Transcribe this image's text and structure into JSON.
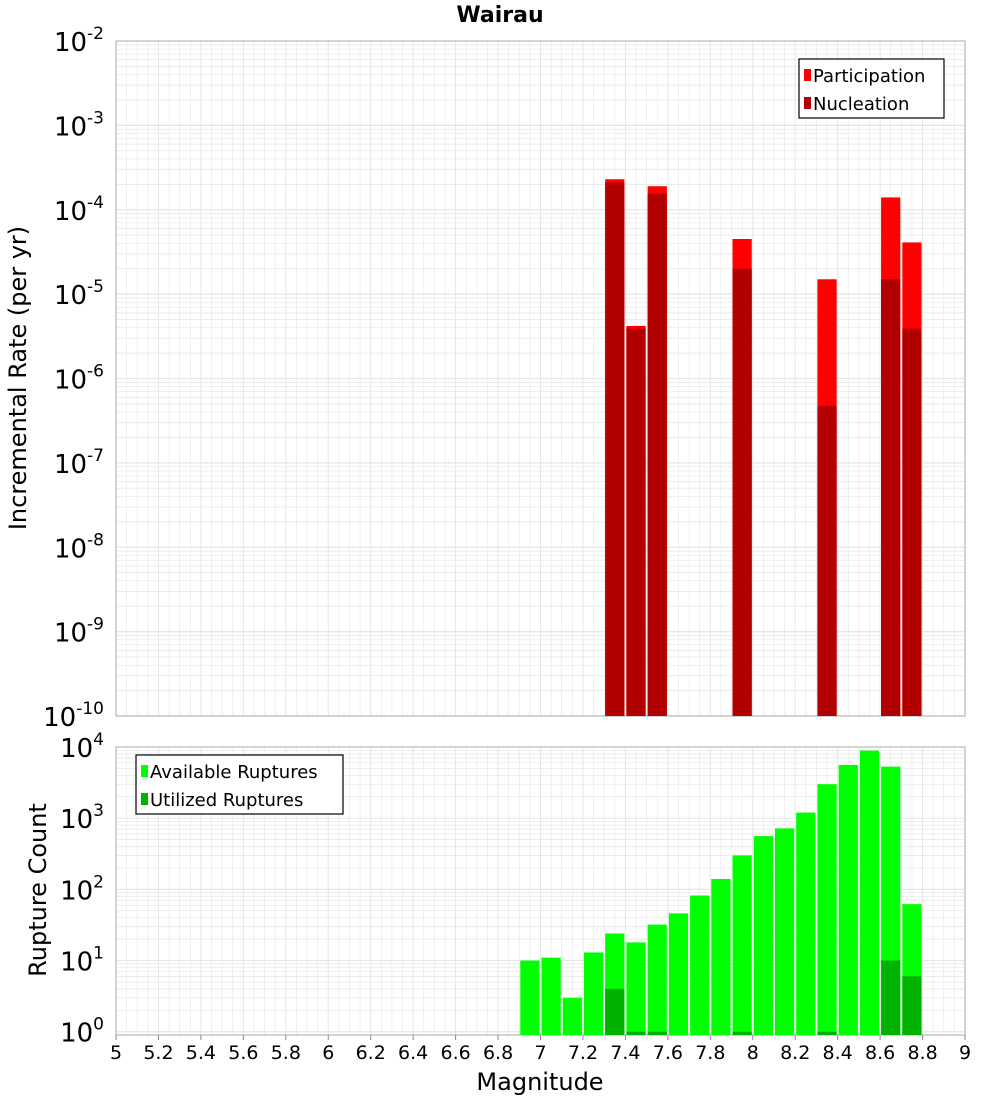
{
  "title": "Wairau",
  "colors": {
    "participation": "#ff0000",
    "nucleation": "#b20000",
    "available": "#00ff00",
    "utilized": "#00b200",
    "grid": "#e6e6e6",
    "frame": "#aaaaaa"
  },
  "chart_data": [
    {
      "type": "bar",
      "title": "Wairau",
      "xlabel": "Magnitude",
      "ylabel": "Incremental Rate (per yr)",
      "y_scale": "log",
      "ylim": [
        1e-10,
        0.01
      ],
      "xlim": [
        5,
        9
      ],
      "grid": true,
      "legend_position": "top-right",
      "x": [
        7.35,
        7.45,
        7.55,
        7.95,
        8.35,
        8.65,
        8.75
      ],
      "series": [
        {
          "name": "Participation",
          "values": [
            0.00023,
            4.2e-06,
            0.00019,
            4.5e-05,
            1.5e-05,
            0.00014,
            4.1e-05
          ]
        },
        {
          "name": "Nucleation",
          "values": [
            0.00021,
            3.9e-06,
            0.000155,
            2e-05,
            4.7e-07,
            1.5e-05,
            3.9e-06
          ]
        }
      ]
    },
    {
      "type": "bar",
      "xlabel": "Magnitude",
      "ylabel": "Rupture Count",
      "y_scale": "log",
      "ylim": [
        0.9,
        10000
      ],
      "xlim": [
        5,
        9
      ],
      "grid": true,
      "legend_position": "top-left",
      "x": [
        6.95,
        7.05,
        7.15,
        7.25,
        7.35,
        7.45,
        7.55,
        7.65,
        7.75,
        7.85,
        7.95,
        8.05,
        8.15,
        8.25,
        8.35,
        8.45,
        8.55,
        8.65,
        8.75
      ],
      "series": [
        {
          "name": "Available Ruptures",
          "values": [
            10,
            11,
            3,
            13,
            24,
            18,
            32,
            46,
            82,
            140,
            300,
            560,
            720,
            1200,
            3000,
            5600,
            8900,
            5300,
            62
          ]
        },
        {
          "name": "Utilized Ruptures",
          "values": [
            0,
            0,
            0,
            0,
            4,
            1,
            1,
            0,
            0,
            0,
            1,
            0,
            0,
            0,
            1,
            0,
            0,
            10,
            6
          ]
        }
      ]
    }
  ],
  "top_ticks": {
    "base": "10",
    "exponents": [
      "-10",
      "-9",
      "-8",
      "-7",
      "-6",
      "-5",
      "-4",
      "-3",
      "-2"
    ]
  },
  "bottom_ticks": {
    "base": "10",
    "exponents": [
      "0",
      "1",
      "2",
      "3",
      "4"
    ]
  },
  "x_ticks": [
    "5",
    "5.2",
    "5.4",
    "5.6",
    "5.8",
    "6",
    "6.2",
    "6.4",
    "6.6",
    "6.8",
    "7",
    "7.2",
    "7.4",
    "7.6",
    "7.8",
    "8",
    "8.2",
    "8.4",
    "8.6",
    "8.8",
    "9"
  ]
}
